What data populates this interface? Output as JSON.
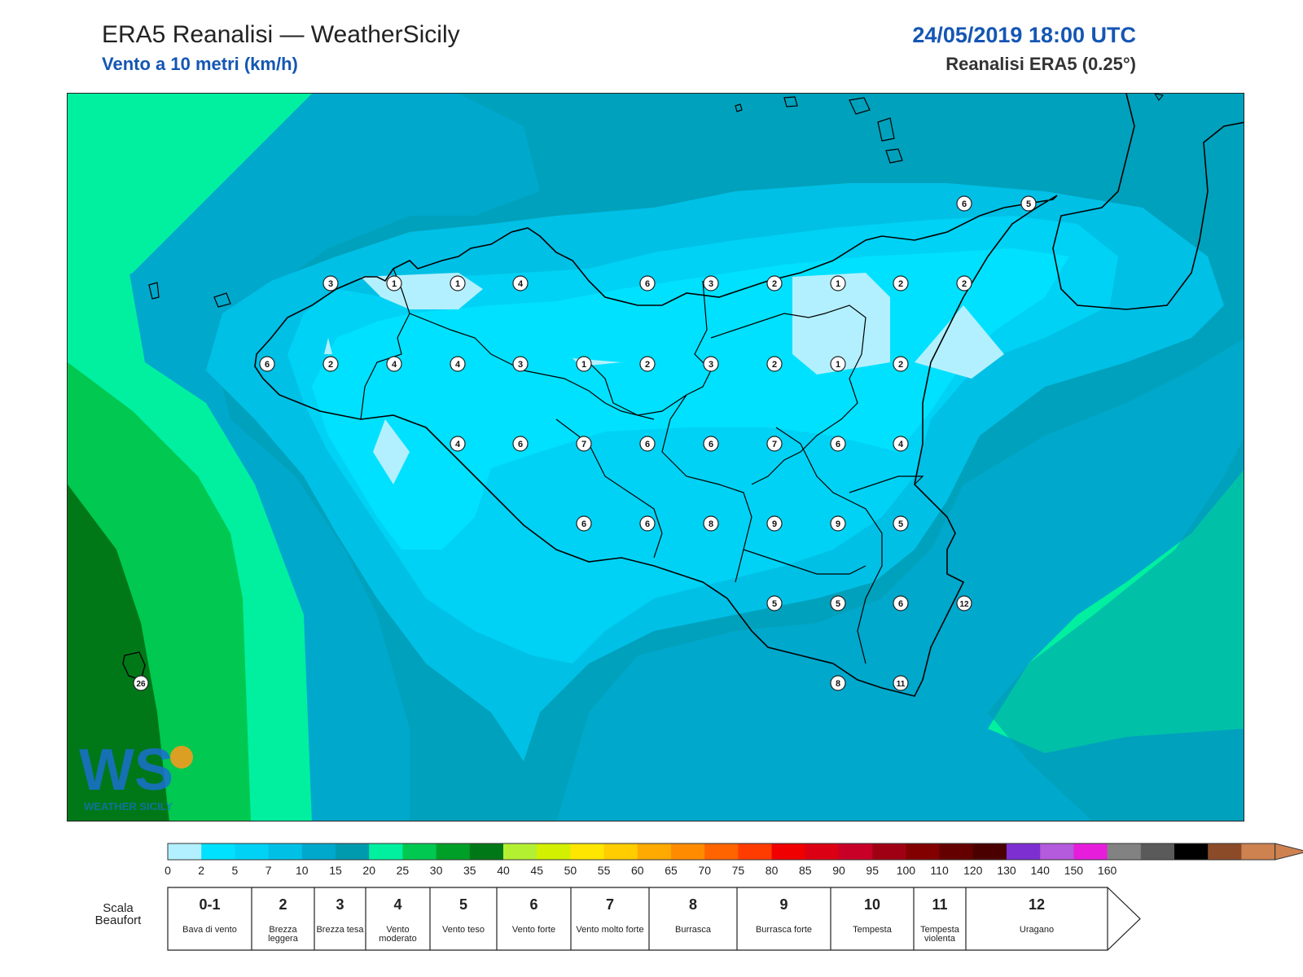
{
  "header": {
    "title": "ERA5 Reanalisi — WeatherSicily",
    "subtitle": "Vento a 10 metri (km/h)",
    "datetime": "24/05/2019 18:00 UTC",
    "source": "Reanalisi ERA5 (0.25°)"
  },
  "logo": {
    "text": "WS",
    "caption": "WEATHER SICILY",
    "colors": [
      "#1b6fcf",
      "#f39a1e",
      "#2fae4e"
    ]
  },
  "colorbar": {
    "colors": [
      "#b3f0ff",
      "#00e1ff",
      "#00d2f5",
      "#00c0e6",
      "#00a8cc",
      "#009aaf",
      "#00f0a0",
      "#00c850",
      "#00a028",
      "#007818",
      "#b4f032",
      "#d2f000",
      "#ffe600",
      "#ffcd00",
      "#ffaa00",
      "#ff8c00",
      "#ff6400",
      "#ff3c00",
      "#f00000",
      "#dc0014",
      "#c80028",
      "#a00014",
      "#820000",
      "#640000",
      "#4b0000",
      "#7d2fd2",
      "#b45adc",
      "#e61edc",
      "#828282",
      "#5a5a5a",
      "#000000",
      "#8c4b28",
      "#cd8250"
    ],
    "ticks": [
      "0",
      "2",
      "5",
      "7",
      "10",
      "15",
      "20",
      "25",
      "30",
      "35",
      "40",
      "45",
      "50",
      "55",
      "60",
      "65",
      "70",
      "75",
      "80",
      "85",
      "90",
      "95",
      "100",
      "110",
      "120",
      "130",
      "140",
      "150",
      "160"
    ]
  },
  "beaufort": {
    "label": "Scala\nBeaufort",
    "classes": [
      {
        "num": "0-1",
        "name": "Bava di vento"
      },
      {
        "num": "2",
        "name": "Brezza leggera"
      },
      {
        "num": "3",
        "name": "Brezza tesa"
      },
      {
        "num": "4",
        "name": "Vento moderato"
      },
      {
        "num": "5",
        "name": "Vento teso"
      },
      {
        "num": "6",
        "name": "Vento forte"
      },
      {
        "num": "7",
        "name": "Vento molto forte"
      },
      {
        "num": "8",
        "name": "Burrasca"
      },
      {
        "num": "9",
        "name": "Burrasca forte"
      },
      {
        "num": "10",
        "name": "Tempesta"
      },
      {
        "num": "11",
        "name": "Tempesta violenta"
      },
      {
        "num": "12",
        "name": "Uragano"
      }
    ]
  },
  "wind_values": [
    "3",
    "1",
    "1",
    "4",
    "6",
    "3",
    "2",
    "1",
    "2",
    "2",
    "6",
    "2",
    "4",
    "4",
    "3",
    "1",
    "2",
    "3",
    "2",
    "1",
    "2",
    "4",
    "6",
    "7",
    "6",
    "6",
    "7",
    "6",
    "4",
    "6",
    "6",
    "8",
    "9",
    "9",
    "5",
    "5",
    "5",
    "6",
    "12",
    "8",
    "11",
    "6",
    "5",
    "26"
  ]
}
